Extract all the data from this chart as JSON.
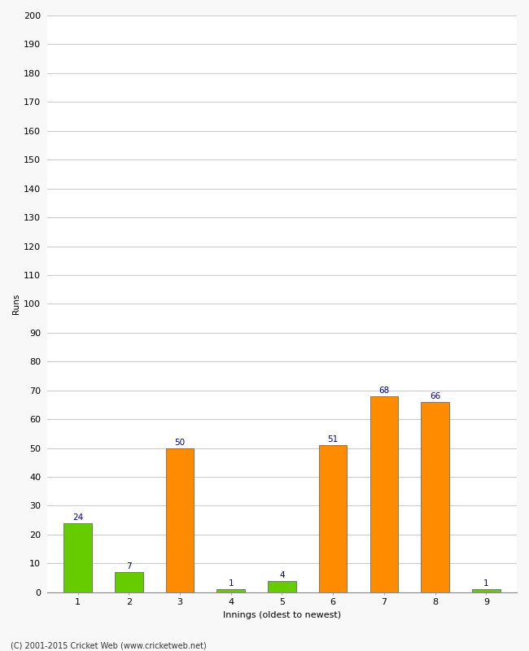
{
  "xlabel": "Innings (oldest to newest)",
  "ylabel": "Runs",
  "categories": [
    "1",
    "2",
    "3",
    "4",
    "5",
    "6",
    "7",
    "8",
    "9"
  ],
  "values": [
    24,
    7,
    50,
    1,
    4,
    51,
    68,
    66,
    1
  ],
  "colors": [
    "#66cc00",
    "#66cc00",
    "#ff8c00",
    "#66cc00",
    "#66cc00",
    "#ff8c00",
    "#ff8c00",
    "#ff8c00",
    "#66cc00"
  ],
  "edge_color": "#cc7700",
  "ylim": [
    0,
    200
  ],
  "yticks": [
    0,
    10,
    20,
    30,
    40,
    50,
    60,
    70,
    80,
    90,
    100,
    110,
    120,
    130,
    140,
    150,
    160,
    170,
    180,
    190,
    200
  ],
  "label_color": "#000080",
  "label_fontsize": 7.5,
  "axis_fontsize": 8,
  "ylabel_fontsize": 7.5,
  "xlabel_fontsize": 8,
  "footer": "(C) 2001-2015 Cricket Web (www.cricketweb.net)",
  "background_color": "#f8f8f8",
  "plot_bg_color": "#ffffff",
  "grid_color": "#cccccc",
  "bar_width": 0.55
}
